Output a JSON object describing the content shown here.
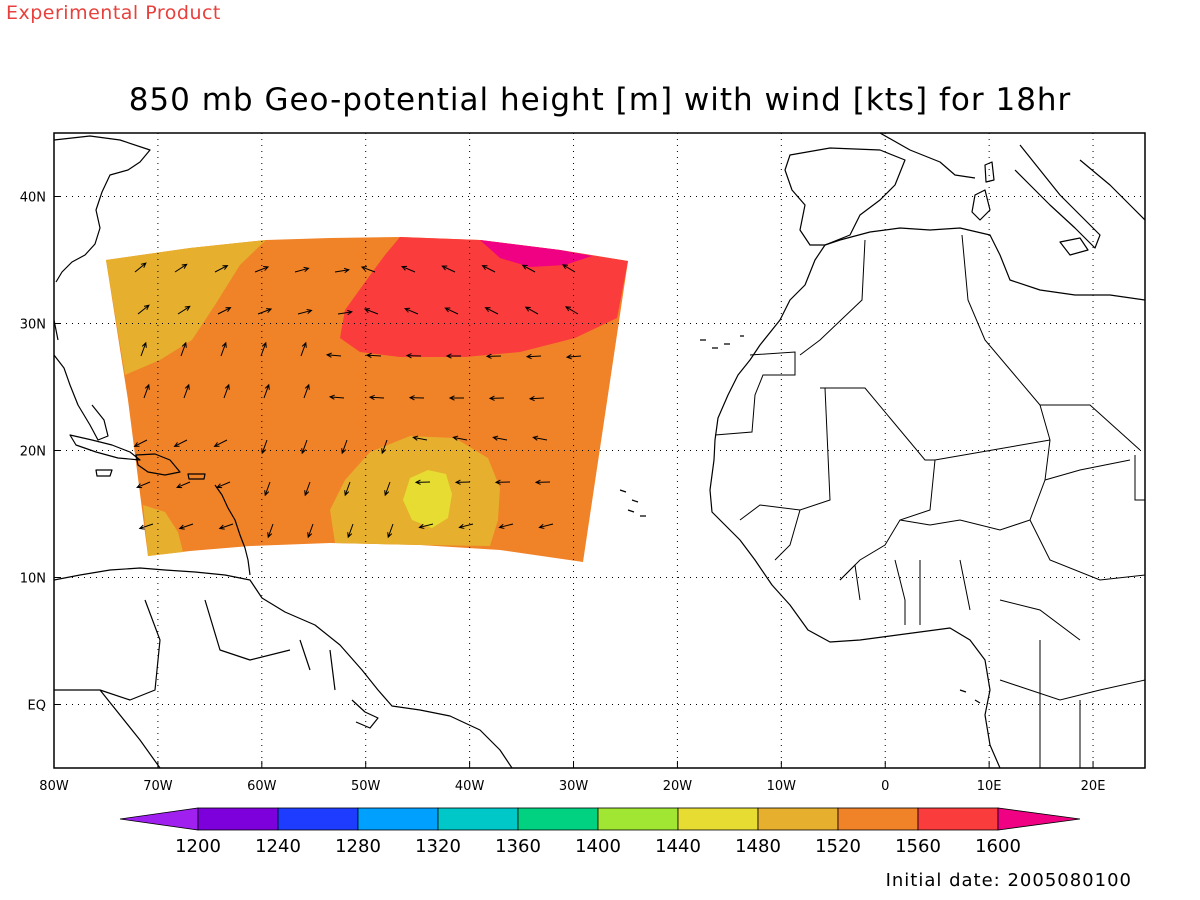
{
  "banner": "Experimental Product",
  "title": "850 mb Geo-potential height [m] with wind [kts] for 18hr",
  "initial_date": "Initial date: 2005080100",
  "colors": {
    "c1200": "#a020f0",
    "c1240": "#7d00dc",
    "c1280": "#1e3cff",
    "c1320": "#00a0ff",
    "c1360": "#00c8c8",
    "c1400": "#00d282",
    "c1440": "#a0e632",
    "c1480": "#e6dc32",
    "c1520": "#e6af2d",
    "c1560": "#f08228",
    "c1600": "#fa3c3c",
    "c1640": "#f00082"
  },
  "map": {
    "lon_range": [
      -80,
      25
    ],
    "lat_range": [
      -5,
      45
    ],
    "x_ticks": [
      {
        "v": -80,
        "label": "80W"
      },
      {
        "v": -70,
        "label": "70W"
      },
      {
        "v": -60,
        "label": "60W"
      },
      {
        "v": -50,
        "label": "50W"
      },
      {
        "v": -40,
        "label": "40W"
      },
      {
        "v": -30,
        "label": "30W"
      },
      {
        "v": -20,
        "label": "20W"
      },
      {
        "v": -10,
        "label": "10W"
      },
      {
        "v": 0,
        "label": "0"
      },
      {
        "v": 10,
        "label": "10E"
      },
      {
        "v": 20,
        "label": "20E"
      }
    ],
    "y_ticks": [
      {
        "v": 0,
        "label": "EQ"
      },
      {
        "v": 10,
        "label": "10N"
      },
      {
        "v": 20,
        "label": "20N"
      },
      {
        "v": 30,
        "label": "30N"
      },
      {
        "v": 40,
        "label": "40N"
      }
    ]
  },
  "colorbar": {
    "labels": [
      "1200",
      "1240",
      "1280",
      "1320",
      "1360",
      "1400",
      "1440",
      "1480",
      "1520",
      "1560",
      "1600"
    ],
    "colors": [
      "#7d00dc",
      "#1e3cff",
      "#00a0ff",
      "#00c8c8",
      "#00d282",
      "#a0e632",
      "#e6dc32",
      "#e6af2d",
      "#f08228",
      "#fa3c3c"
    ],
    "low_color": "#a020f0",
    "high_color": "#f00082"
  }
}
